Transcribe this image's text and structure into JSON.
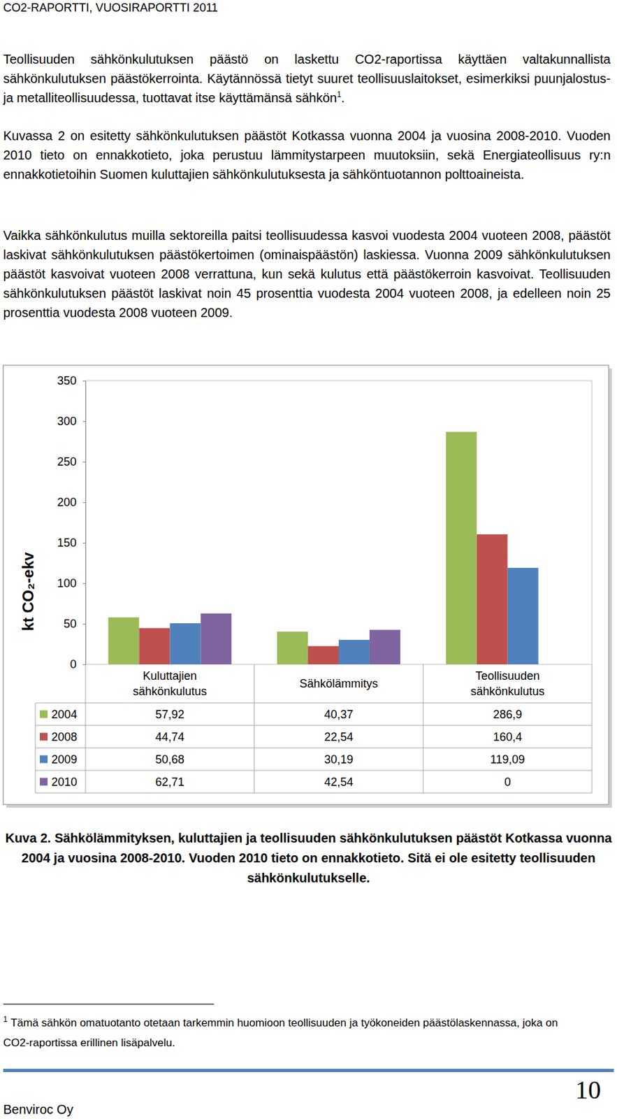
{
  "header": "CO2-RAPORTTI, VUOSIRAPORTTI 2011",
  "paragraphs": [
    {
      "text": "Teollisuuden sähkönkulutuksen päästö on laskettu CO2-raportissa käyttäen valtakunnallista sähkönkulutuksen päästökerrointa. Käytännössä tietyt suuret teollisuuslaitokset, esimerkiksi puunjalostus- ja metalliteollisuudessa, tuottavat itse käyttämänsä sähkön",
      "footnote_ref": "1",
      "text_after": "."
    },
    {
      "text": "Kuvassa 2 on esitetty sähkönkulutuksen päästöt Kotkassa vuonna 2004 ja vuosina 2008-2010. Vuoden 2010 tieto on ennakkotieto, joka perustuu lämmitystarpeen muutoksiin, sekä Energiateollisuus ry:n ennakkotietoihin Suomen kuluttajien sähkönkulutuksesta ja sähköntuotannon polttoaineista."
    },
    {
      "text": "Vaikka sähkönkulutus muilla sektoreilla paitsi teollisuudessa kasvoi vuodesta 2004 vuoteen 2008, päästöt laskivat sähkönkulutuksen päästökertoimen (ominaispäästön) laskiessa. Vuonna 2009 sähkönkulutuksen päästöt kasvoivat vuoteen 2008 verrattuna, kun sekä kulutus että päästökerroin kasvoivat. Teollisuuden sähkönkulutuksen päästöt laskivat noin 45 prosenttia vuodesta 2004 vuoteen 2008, ja edelleen noin 25 prosenttia vuodesta 2008 vuoteen 2009."
    }
  ],
  "chart_data": {
    "type": "bar",
    "categories": [
      "Kuluttajien sähkönkulutus",
      "Sähkölämmitys",
      "Teollisuuden sähkönkulutus"
    ],
    "series": [
      {
        "name": "2004",
        "color": "#9bbb59",
        "values": [
          57.92,
          40.37,
          286.9
        ],
        "value_labels": [
          "57,92",
          "40,37",
          "286,9"
        ]
      },
      {
        "name": "2008",
        "color": "#c0504d",
        "values": [
          44.74,
          22.54,
          160.4
        ],
        "value_labels": [
          "44,74",
          "22,54",
          "160,4"
        ]
      },
      {
        "name": "2009",
        "color": "#4f81bd",
        "values": [
          50.68,
          30.19,
          119.09
        ],
        "value_labels": [
          "50,68",
          "30,19",
          "119,09"
        ]
      },
      {
        "name": "2010",
        "color": "#8064a2",
        "values": [
          62.71,
          42.54,
          0
        ],
        "value_labels": [
          "62,71",
          "42,54",
          "0"
        ]
      }
    ],
    "y_label": "kt CO₂-ekv",
    "ylim": [
      0,
      350
    ],
    "yticks": [
      0,
      50,
      100,
      150,
      200,
      250,
      300,
      350
    ],
    "grid": false,
    "legend": "bottom"
  },
  "figure_caption": "Kuva 2. Sähkölämmityksen, kuluttajien ja teollisuuden sähkönkulutuksen päästöt Kotkassa vuonna 2004 ja vuosina 2008-2010. Vuoden 2010 tieto on ennakkotieto. Sitä ei ole esitetty teollisuuden sähkönkulutukselle.",
  "footnote": {
    "mark": "1",
    "text": "Tämä sähkön omatuotanto otetaan tarkemmin huomioon teollisuuden ja työkoneiden päästölaskennassa, joka on CO2-raportissa erillinen lisäpalvelu."
  },
  "footer": "Benviroc Oy",
  "page_number": "10"
}
